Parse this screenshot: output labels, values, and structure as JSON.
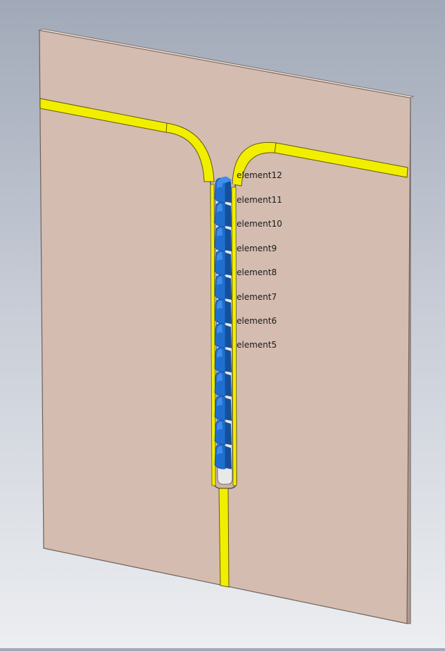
{
  "model": {
    "colors": {
      "background_top": "#a1a9b8",
      "background_bottom": "#eceef1",
      "substrate": "#d4bcb0",
      "substrate_edge": "#9c8a80",
      "trace": "#f2ee00",
      "trace_edge": "#6d6a00",
      "element": "#1e6fd0",
      "element_highlight": "#3f8eea",
      "element_shadow": "#154f9a"
    },
    "element_labels": [
      "element12",
      "element11",
      "element10",
      "element9",
      "element8",
      "element7",
      "element6",
      "element5"
    ]
  }
}
